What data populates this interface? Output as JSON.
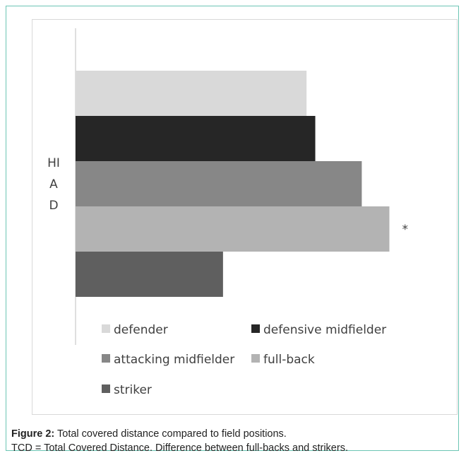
{
  "chart_data": {
    "type": "bar",
    "orientation": "horizontal",
    "category_label": [
      "HI",
      "A",
      "D"
    ],
    "series": [
      {
        "name": "defender",
        "value": 318,
        "color": "#d9d9d9"
      },
      {
        "name": "defensive midfielder",
        "value": 330,
        "color": "#262626"
      },
      {
        "name": "attacking midfielder",
        "value": 394,
        "color": "#878787"
      },
      {
        "name": "full-back",
        "value": 432,
        "color": "#b3b3b3"
      },
      {
        "name": "striker",
        "value": 203,
        "color": "#5f5f5f"
      }
    ],
    "xlim": [
      0,
      450
    ],
    "annotation": "*",
    "grid": false,
    "legend_position": "bottom"
  },
  "caption": {
    "label": "Figure 2:",
    "line1": " Total covered distance compared to field positions.",
    "line2": "TCD = Total Covered Distance. Difference between full-backs and strikers."
  }
}
